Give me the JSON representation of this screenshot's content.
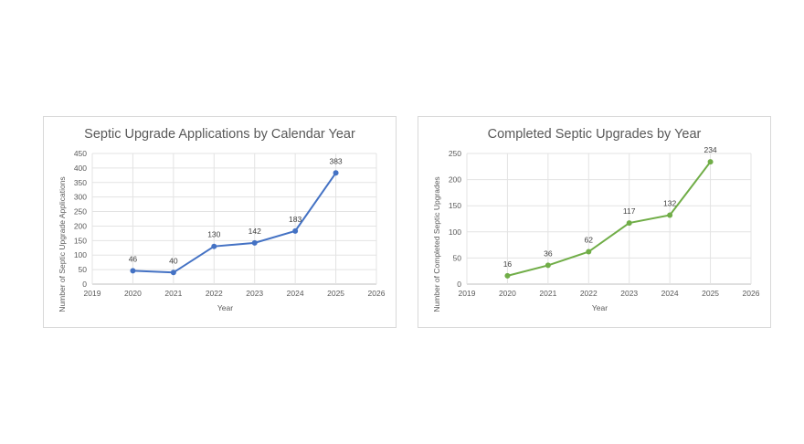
{
  "chart_data": [
    {
      "type": "line",
      "title": "Septic Upgrade Applications by Calendar Year",
      "xlabel": "Year",
      "ylabel": "Number of Septic Upgrade Applications",
      "x": [
        2020,
        2021,
        2022,
        2023,
        2024,
        2025
      ],
      "values": [
        46,
        40,
        130,
        142,
        183,
        383
      ],
      "xlim": [
        2019,
        2026
      ],
      "ylim": [
        0,
        450
      ],
      "ystep": 50,
      "grid": true,
      "data_labels": true,
      "color": "#4472c4"
    },
    {
      "type": "line",
      "title": "Completed Septic Upgrades by Year",
      "xlabel": "Year",
      "ylabel": "Number of Completed Septic Upgrades",
      "x": [
        2020,
        2021,
        2022,
        2023,
        2024,
        2025
      ],
      "values": [
        16,
        36,
        62,
        117,
        132,
        234
      ],
      "xlim": [
        2019,
        2026
      ],
      "ylim": [
        0,
        250
      ],
      "ystep": 50,
      "grid": true,
      "data_labels": true,
      "color": "#70ad47"
    }
  ]
}
